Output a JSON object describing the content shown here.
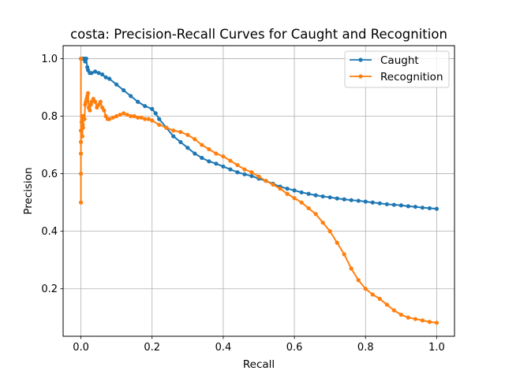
{
  "chart_data": {
    "type": "line",
    "title": "costa: Precision-Recall Curves for Caught and Recognition",
    "xlabel": "Recall",
    "ylabel": "Precision",
    "xlim": [
      -0.05,
      1.05
    ],
    "ylim": [
      0.035,
      1.045
    ],
    "xticks": [
      0.0,
      0.2,
      0.4,
      0.6,
      0.8,
      1.0
    ],
    "xtick_labels": [
      "0.0",
      "0.2",
      "0.4",
      "0.6",
      "0.8",
      "1.0"
    ],
    "yticks": [
      0.2,
      0.4,
      0.6,
      0.8,
      1.0
    ],
    "ytick_labels": [
      "0.2",
      "0.4",
      "0.6",
      "0.8",
      "1.0"
    ],
    "grid": true,
    "legend_position": "top-right",
    "series": [
      {
        "name": "Caught",
        "color": "#1f77b4",
        "marker": "dot",
        "x": [
          0.0,
          0.005,
          0.01,
          0.012,
          0.015,
          0.018,
          0.02,
          0.025,
          0.03,
          0.04,
          0.05,
          0.06,
          0.07,
          0.08,
          0.1,
          0.12,
          0.14,
          0.16,
          0.18,
          0.2,
          0.21,
          0.22,
          0.24,
          0.26,
          0.28,
          0.3,
          0.32,
          0.34,
          0.36,
          0.38,
          0.4,
          0.42,
          0.44,
          0.46,
          0.48,
          0.5,
          0.52,
          0.54,
          0.56,
          0.58,
          0.6,
          0.62,
          0.64,
          0.66,
          0.68,
          0.7,
          0.72,
          0.74,
          0.76,
          0.78,
          0.8,
          0.82,
          0.84,
          0.86,
          0.88,
          0.9,
          0.92,
          0.94,
          0.96,
          0.98,
          1.0
        ],
        "y": [
          1.0,
          1.0,
          1.0,
          0.99,
          1.0,
          0.97,
          0.96,
          0.95,
          0.95,
          0.955,
          0.95,
          0.945,
          0.935,
          0.93,
          0.91,
          0.89,
          0.87,
          0.85,
          0.835,
          0.825,
          0.81,
          0.79,
          0.76,
          0.73,
          0.71,
          0.69,
          0.67,
          0.655,
          0.643,
          0.635,
          0.625,
          0.615,
          0.605,
          0.598,
          0.592,
          0.583,
          0.575,
          0.565,
          0.555,
          0.548,
          0.542,
          0.535,
          0.53,
          0.525,
          0.521,
          0.518,
          0.514,
          0.511,
          0.508,
          0.506,
          0.503,
          0.5,
          0.497,
          0.494,
          0.492,
          0.49,
          0.487,
          0.485,
          0.482,
          0.48,
          0.478
        ]
      },
      {
        "name": "Recognition",
        "color": "#ff7f0e",
        "marker": "dot",
        "x": [
          0.0,
          0.0,
          0.0,
          0.0,
          0.0,
          0.0,
          0.002,
          0.003,
          0.004,
          0.005,
          0.006,
          0.008,
          0.01,
          0.012,
          0.014,
          0.016,
          0.018,
          0.02,
          0.022,
          0.025,
          0.028,
          0.03,
          0.035,
          0.04,
          0.045,
          0.05,
          0.055,
          0.06,
          0.065,
          0.07,
          0.075,
          0.08,
          0.09,
          0.1,
          0.11,
          0.12,
          0.13,
          0.14,
          0.15,
          0.16,
          0.17,
          0.18,
          0.19,
          0.2,
          0.22,
          0.24,
          0.26,
          0.28,
          0.3,
          0.32,
          0.34,
          0.36,
          0.38,
          0.4,
          0.42,
          0.44,
          0.46,
          0.48,
          0.5,
          0.52,
          0.54,
          0.56,
          0.58,
          0.6,
          0.62,
          0.64,
          0.66,
          0.68,
          0.7,
          0.72,
          0.74,
          0.76,
          0.78,
          0.8,
          0.82,
          0.84,
          0.86,
          0.88,
          0.9,
          0.92,
          0.94,
          0.96,
          0.98,
          1.0
        ],
        "y": [
          0.5,
          1.0,
          0.6,
          0.67,
          0.75,
          0.71,
          0.78,
          0.8,
          0.73,
          0.77,
          0.76,
          0.8,
          0.79,
          0.84,
          0.85,
          0.86,
          0.87,
          0.88,
          0.83,
          0.82,
          0.84,
          0.85,
          0.86,
          0.85,
          0.83,
          0.84,
          0.85,
          0.83,
          0.82,
          0.8,
          0.79,
          0.79,
          0.795,
          0.8,
          0.805,
          0.81,
          0.805,
          0.8,
          0.8,
          0.795,
          0.795,
          0.79,
          0.79,
          0.785,
          0.77,
          0.76,
          0.75,
          0.745,
          0.735,
          0.72,
          0.7,
          0.685,
          0.67,
          0.66,
          0.645,
          0.63,
          0.615,
          0.605,
          0.59,
          0.575,
          0.562,
          0.548,
          0.53,
          0.515,
          0.5,
          0.48,
          0.46,
          0.43,
          0.4,
          0.36,
          0.32,
          0.27,
          0.23,
          0.2,
          0.18,
          0.165,
          0.145,
          0.125,
          0.11,
          0.1,
          0.095,
          0.09,
          0.085,
          0.082
        ]
      }
    ]
  }
}
